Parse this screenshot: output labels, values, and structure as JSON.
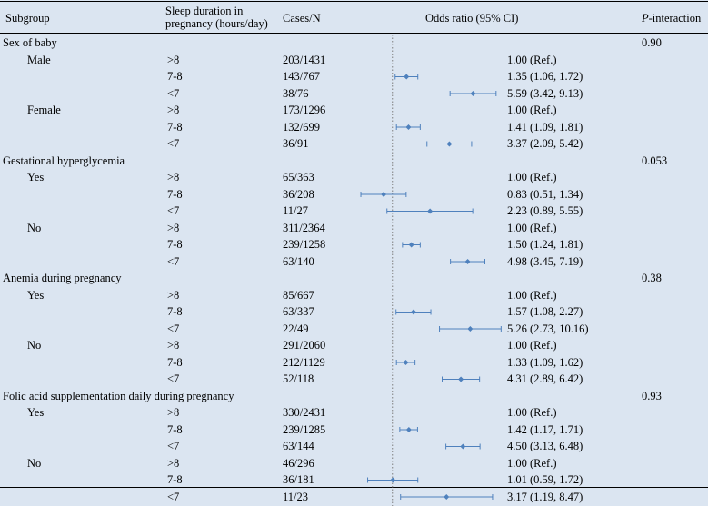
{
  "header": {
    "subgroup": "Subgroup",
    "sleep_line1": "Sleep duration in",
    "sleep_line2": "pregnancy (hours/day)",
    "cases": "Cases/N",
    "odds": "Odds ratio (95% CI)",
    "p_italic": "P",
    "p_rest": "-interaction"
  },
  "groups": [
    {
      "title": "Sex of baby",
      "p_interaction": "0.90",
      "subgroups": [
        {
          "label": "Male",
          "rows": [
            {
              "sleep": ">8",
              "cases": "203/1431",
              "ci_text": "1.00 (Ref.)"
            },
            {
              "sleep": "7-8",
              "cases": "143/767",
              "ci_text": "1.35 (1.06, 1.72)"
            },
            {
              "sleep": "<7",
              "cases": "38/76",
              "ci_text": "5.59 (3.42, 9.13)"
            }
          ]
        },
        {
          "label": "Female",
          "rows": [
            {
              "sleep": ">8",
              "cases": "173/1296",
              "ci_text": "1.00 (Ref.)"
            },
            {
              "sleep": "7-8",
              "cases": "132/699",
              "ci_text": "1.41 (1.09, 1.81)"
            },
            {
              "sleep": "<7",
              "cases": "36/91",
              "ci_text": "3.37 (2.09, 5.42)"
            }
          ]
        }
      ]
    },
    {
      "title": "Gestational hyperglycemia",
      "p_interaction": "0.053",
      "subgroups": [
        {
          "label": "Yes",
          "rows": [
            {
              "sleep": ">8",
              "cases": "65/363",
              "ci_text": "1.00 (Ref.)"
            },
            {
              "sleep": "7-8",
              "cases": "36/208",
              "ci_text": "0.83 (0.51, 1.34)"
            },
            {
              "sleep": "<7",
              "cases": "11/27",
              "ci_text": "2.23 (0.89, 5.55)"
            }
          ]
        },
        {
          "label": "No",
          "rows": [
            {
              "sleep": ">8",
              "cases": "311/2364",
              "ci_text": "1.00 (Ref.)"
            },
            {
              "sleep": "7-8",
              "cases": "239/1258",
              "ci_text": "1.50 (1.24, 1.81)"
            },
            {
              "sleep": "<7",
              "cases": "63/140",
              "ci_text": "4.98 (3.45, 7.19)"
            }
          ]
        }
      ]
    },
    {
      "title": "Anemia during pregnancy",
      "p_interaction": "0.38",
      "subgroups": [
        {
          "label": "Yes",
          "rows": [
            {
              "sleep": ">8",
              "cases": "85/667",
              "ci_text": "1.00 (Ref.)"
            },
            {
              "sleep": "7-8",
              "cases": "63/337",
              "ci_text": "1.57 (1.08, 2.27)"
            },
            {
              "sleep": "<7",
              "cases": "22/49",
              "ci_text": "5.26 (2.73, 10.16)"
            }
          ]
        },
        {
          "label": "No",
          "rows": [
            {
              "sleep": ">8",
              "cases": "291/2060",
              "ci_text": "1.00 (Ref.)"
            },
            {
              "sleep": "7-8",
              "cases": "212/1129",
              "ci_text": "1.33 (1.09, 1.62)"
            },
            {
              "sleep": "<7",
              "cases": "52/118",
              "ci_text": "4.31 (2.89, 6.42)"
            }
          ]
        }
      ]
    },
    {
      "title": "Folic acid supplementation daily during pregnancy",
      "p_interaction": "0.93",
      "subgroups": [
        {
          "label": "Yes",
          "rows": [
            {
              "sleep": ">8",
              "cases": "330/2431",
              "ci_text": "1.00 (Ref.)"
            },
            {
              "sleep": "7-8",
              "cases": "239/1285",
              "ci_text": "1.42 (1.17, 1.71)"
            },
            {
              "sleep": "<7",
              "cases": "63/144",
              "ci_text": "4.50 (3.13, 6.48)"
            }
          ]
        },
        {
          "label": "No",
          "rows": [
            {
              "sleep": ">8",
              "cases": "46/296",
              "ci_text": "1.00 (Ref.)"
            },
            {
              "sleep": "7-8",
              "cases": "36/181",
              "ci_text": "1.01 (0.59, 1.72)"
            },
            {
              "sleep": "<7",
              "cases": "11/23",
              "ci_text": "3.17 (1.19, 8.47)"
            }
          ]
        }
      ]
    }
  ],
  "chart_data": {
    "type": "forest",
    "x_scale": "log",
    "xlim": [
      0.5,
      10.5
    ],
    "reference_line": 1.0,
    "x_ticks": [
      {
        "value": 0.5,
        "label": "0.5"
      },
      {
        "value": 1.0,
        "label": "1.0"
      },
      {
        "value": 2.0,
        "label": "2.0"
      },
      {
        "value": 4.0,
        "label": "4.0"
      },
      {
        "value": 8.0,
        "label": "8.0"
      }
    ],
    "points": [
      {
        "or": 1.35,
        "lo": 1.06,
        "hi": 1.72
      },
      {
        "or": 5.59,
        "lo": 3.42,
        "hi": 9.13
      },
      {
        "or": 1.41,
        "lo": 1.09,
        "hi": 1.81
      },
      {
        "or": 3.37,
        "lo": 2.09,
        "hi": 5.42
      },
      {
        "or": 0.83,
        "lo": 0.51,
        "hi": 1.34
      },
      {
        "or": 2.23,
        "lo": 0.89,
        "hi": 5.55
      },
      {
        "or": 1.5,
        "lo": 1.24,
        "hi": 1.81
      },
      {
        "or": 4.98,
        "lo": 3.45,
        "hi": 7.19
      },
      {
        "or": 1.57,
        "lo": 1.08,
        "hi": 2.27
      },
      {
        "or": 5.26,
        "lo": 2.73,
        "hi": 10.16
      },
      {
        "or": 1.33,
        "lo": 1.09,
        "hi": 1.62
      },
      {
        "or": 4.31,
        "lo": 2.89,
        "hi": 6.42
      },
      {
        "or": 1.42,
        "lo": 1.17,
        "hi": 1.71
      },
      {
        "or": 4.5,
        "lo": 3.13,
        "hi": 6.48
      },
      {
        "or": 1.01,
        "lo": 0.59,
        "hi": 1.72
      },
      {
        "or": 3.17,
        "lo": 1.19,
        "hi": 8.47
      }
    ],
    "marker_color": "#4f81bd",
    "line_color": "#4f81bd"
  }
}
